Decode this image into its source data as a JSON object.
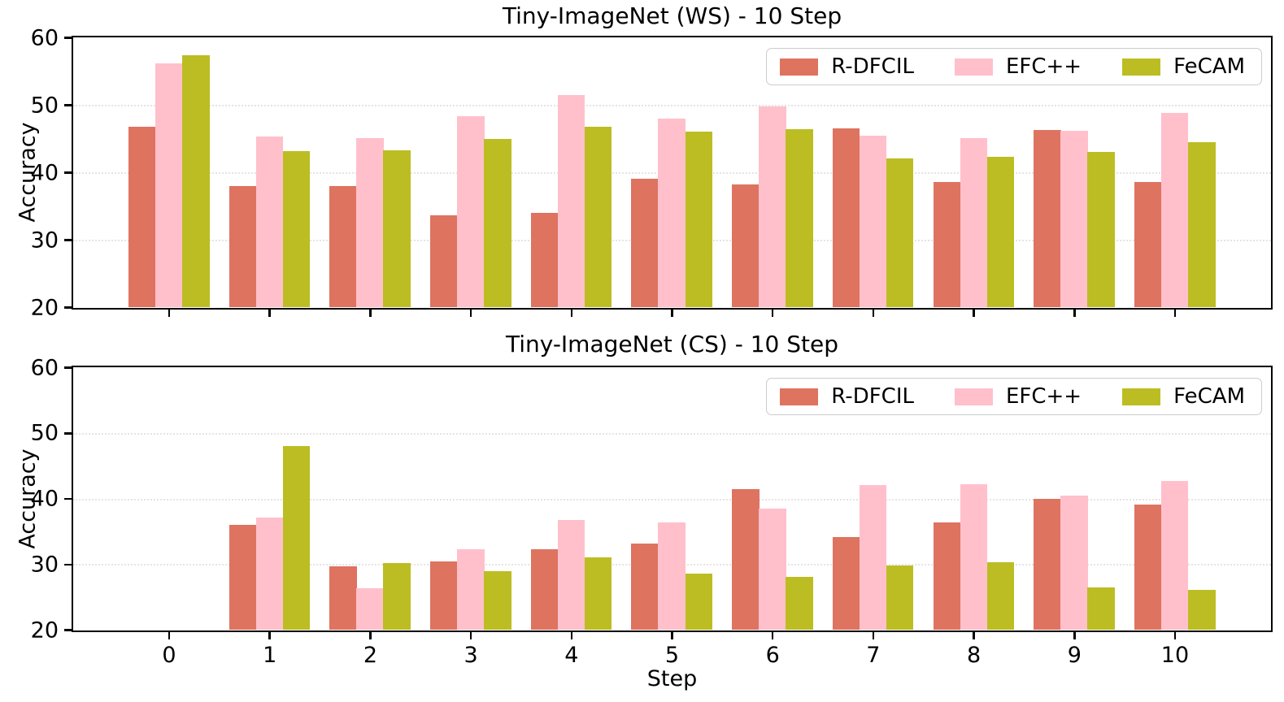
{
  "figure": {
    "background": "#ffffff",
    "text_color": "#000000",
    "colors": {
      "R-DFCIL": "#DE7360",
      "EFC++": "#FFC0CB",
      "FeCAM": "#BCBD22"
    },
    "legend_labels": [
      "R-DFCIL",
      "EFC++",
      "FeCAM"
    ]
  },
  "chart_data": [
    {
      "type": "bar",
      "title": "Tiny-ImageNet (WS) - 10 Step",
      "xlabel": "",
      "ylabel": "Accuracy",
      "ylim": [
        20,
        60
      ],
      "yticks": [
        "20",
        "30",
        "40",
        "50",
        "60"
      ],
      "grid_values": [
        30,
        40,
        50
      ],
      "grid": "horizontal-dotted",
      "legend_position": "upper right",
      "categories": [
        "0",
        "1",
        "2",
        "3",
        "4",
        "5",
        "6",
        "7",
        "8",
        "9",
        "10"
      ],
      "show_x_labels": false,
      "series": [
        {
          "name": "R-DFCIL",
          "color": "#DE7360",
          "values": [
            46.8,
            38.0,
            38.0,
            33.6,
            34.0,
            39.0,
            38.2,
            46.5,
            38.6,
            46.3,
            38.6
          ]
        },
        {
          "name": "EFC++",
          "color": "#FFC0CB",
          "values": [
            56.1,
            45.3,
            45.1,
            48.3,
            51.4,
            48.0,
            49.7,
            45.4,
            45.1,
            46.2,
            48.8
          ]
        },
        {
          "name": "FeCAM",
          "color": "#BCBD22",
          "values": [
            57.4,
            43.1,
            43.2,
            45.0,
            46.7,
            46.0,
            46.4,
            42.0,
            42.3,
            43.0,
            44.5
          ]
        }
      ]
    },
    {
      "type": "bar",
      "title": "Tiny-ImageNet (CS) - 10 Step",
      "xlabel": "Step",
      "ylabel": "Accuracy",
      "ylim": [
        20,
        60
      ],
      "yticks": [
        "20",
        "30",
        "40",
        "50",
        "60"
      ],
      "grid_values": [
        30,
        40,
        50
      ],
      "grid": "horizontal-dotted",
      "legend_position": "upper right",
      "categories": [
        "0",
        "1",
        "2",
        "3",
        "4",
        "5",
        "6",
        "7",
        "8",
        "9",
        "10"
      ],
      "show_x_labels": true,
      "series": [
        {
          "name": "R-DFCIL",
          "color": "#DE7360",
          "values": [
            null,
            36.0,
            29.7,
            30.4,
            32.3,
            33.1,
            41.4,
            34.1,
            36.3,
            40.0,
            39.1
          ]
        },
        {
          "name": "EFC++",
          "color": "#FFC0CB",
          "values": [
            null,
            37.1,
            26.3,
            32.2,
            36.7,
            36.4,
            38.4,
            42.0,
            42.2,
            40.4,
            42.7
          ]
        },
        {
          "name": "FeCAM",
          "color": "#BCBD22",
          "values": [
            null,
            48.0,
            30.2,
            28.9,
            31.0,
            28.5,
            28.0,
            29.8,
            30.3,
            26.5,
            26.1
          ]
        }
      ]
    }
  ]
}
